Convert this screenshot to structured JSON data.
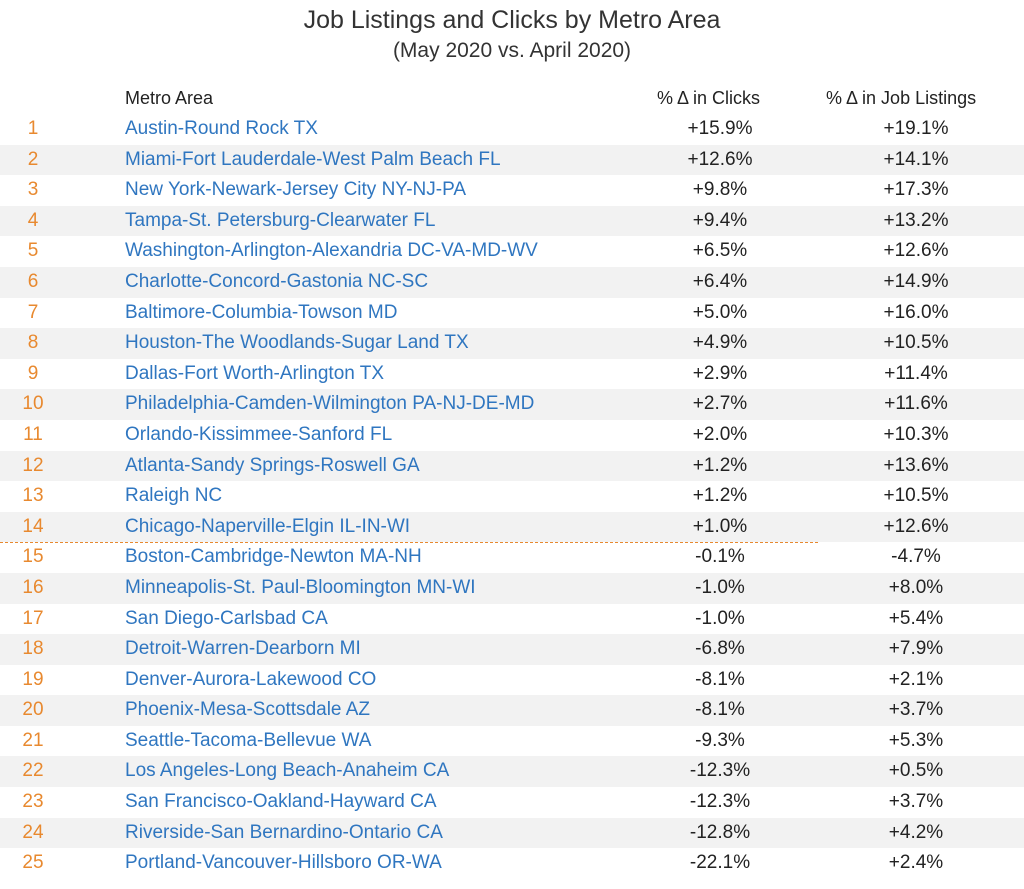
{
  "chart_data": {
    "type": "table",
    "title": "Job Listings and Clicks by Metro Area",
    "subtitle": "(May 2020 vs. April 2020)",
    "columns": [
      "Metro Area",
      "% Δ in Clicks",
      "% Δ in Job Listings"
    ],
    "rows": [
      {
        "rank": "1",
        "metro": "Austin-Round Rock TX",
        "clicks": "+15.9%",
        "listings": "+19.1%"
      },
      {
        "rank": "2",
        "metro": "Miami-Fort Lauderdale-West Palm Beach FL",
        "clicks": "+12.6%",
        "listings": "+14.1%"
      },
      {
        "rank": "3",
        "metro": "New York-Newark-Jersey City NY-NJ-PA",
        "clicks": "+9.8%",
        "listings": "+17.3%"
      },
      {
        "rank": "4",
        "metro": "Tampa-St. Petersburg-Clearwater FL",
        "clicks": "+9.4%",
        "listings": "+13.2%"
      },
      {
        "rank": "5",
        "metro": "Washington-Arlington-Alexandria DC-VA-MD-WV",
        "clicks": "+6.5%",
        "listings": "+12.6%"
      },
      {
        "rank": "6",
        "metro": "Charlotte-Concord-Gastonia NC-SC",
        "clicks": "+6.4%",
        "listings": "+14.9%"
      },
      {
        "rank": "7",
        "metro": "Baltimore-Columbia-Towson MD",
        "clicks": "+5.0%",
        "listings": "+16.0%"
      },
      {
        "rank": "8",
        "metro": "Houston-The Woodlands-Sugar Land TX",
        "clicks": "+4.9%",
        "listings": "+10.5%"
      },
      {
        "rank": "9",
        "metro": "Dallas-Fort Worth-Arlington TX",
        "clicks": "+2.9%",
        "listings": "+11.4%"
      },
      {
        "rank": "10",
        "metro": "Philadelphia-Camden-Wilmington PA-NJ-DE-MD",
        "clicks": "+2.7%",
        "listings": "+11.6%"
      },
      {
        "rank": "11",
        "metro": "Orlando-Kissimmee-Sanford FL",
        "clicks": "+2.0%",
        "listings": "+10.3%"
      },
      {
        "rank": "12",
        "metro": "Atlanta-Sandy Springs-Roswell GA",
        "clicks": "+1.2%",
        "listings": "+13.6%"
      },
      {
        "rank": "13",
        "metro": "Raleigh NC",
        "clicks": "+1.2%",
        "listings": "+10.5%"
      },
      {
        "rank": "14",
        "metro": "Chicago-Naperville-Elgin IL-IN-WI",
        "clicks": "+1.0%",
        "listings": "+12.6%"
      },
      {
        "rank": "15",
        "metro": "Boston-Cambridge-Newton MA-NH",
        "clicks": "-0.1%",
        "listings": "-4.7%"
      },
      {
        "rank": "16",
        "metro": "Minneapolis-St. Paul-Bloomington MN-WI",
        "clicks": "-1.0%",
        "listings": "+8.0%"
      },
      {
        "rank": "17",
        "metro": "San Diego-Carlsbad CA",
        "clicks": "-1.0%",
        "listings": "+5.4%"
      },
      {
        "rank": "18",
        "metro": "Detroit-Warren-Dearborn MI",
        "clicks": "-6.8%",
        "listings": "+7.9%"
      },
      {
        "rank": "19",
        "metro": "Denver-Aurora-Lakewood CO",
        "clicks": "-8.1%",
        "listings": "+2.1%"
      },
      {
        "rank": "20",
        "metro": "Phoenix-Mesa-Scottsdale AZ",
        "clicks": "-8.1%",
        "listings": "+3.7%"
      },
      {
        "rank": "21",
        "metro": "Seattle-Tacoma-Bellevue WA",
        "clicks": "-9.3%",
        "listings": "+5.3%"
      },
      {
        "rank": "22",
        "metro": "Los Angeles-Long Beach-Anaheim CA",
        "clicks": "-12.3%",
        "listings": "+0.5%"
      },
      {
        "rank": "23",
        "metro": "San Francisco-Oakland-Hayward CA",
        "clicks": "-12.3%",
        "listings": "+3.7%"
      },
      {
        "rank": "24",
        "metro": "Riverside-San Bernardino-Ontario CA",
        "clicks": "-12.8%",
        "listings": "+4.2%"
      },
      {
        "rank": "25",
        "metro": "Portland-Vancouver-Hillsboro OR-WA",
        "clicks": "-22.1%",
        "listings": "+2.4%"
      }
    ],
    "colors": {
      "rank": "#e8892f",
      "metro": "#2f76c0",
      "shade": "#f2f2f2",
      "divider": "#e8892f"
    }
  }
}
